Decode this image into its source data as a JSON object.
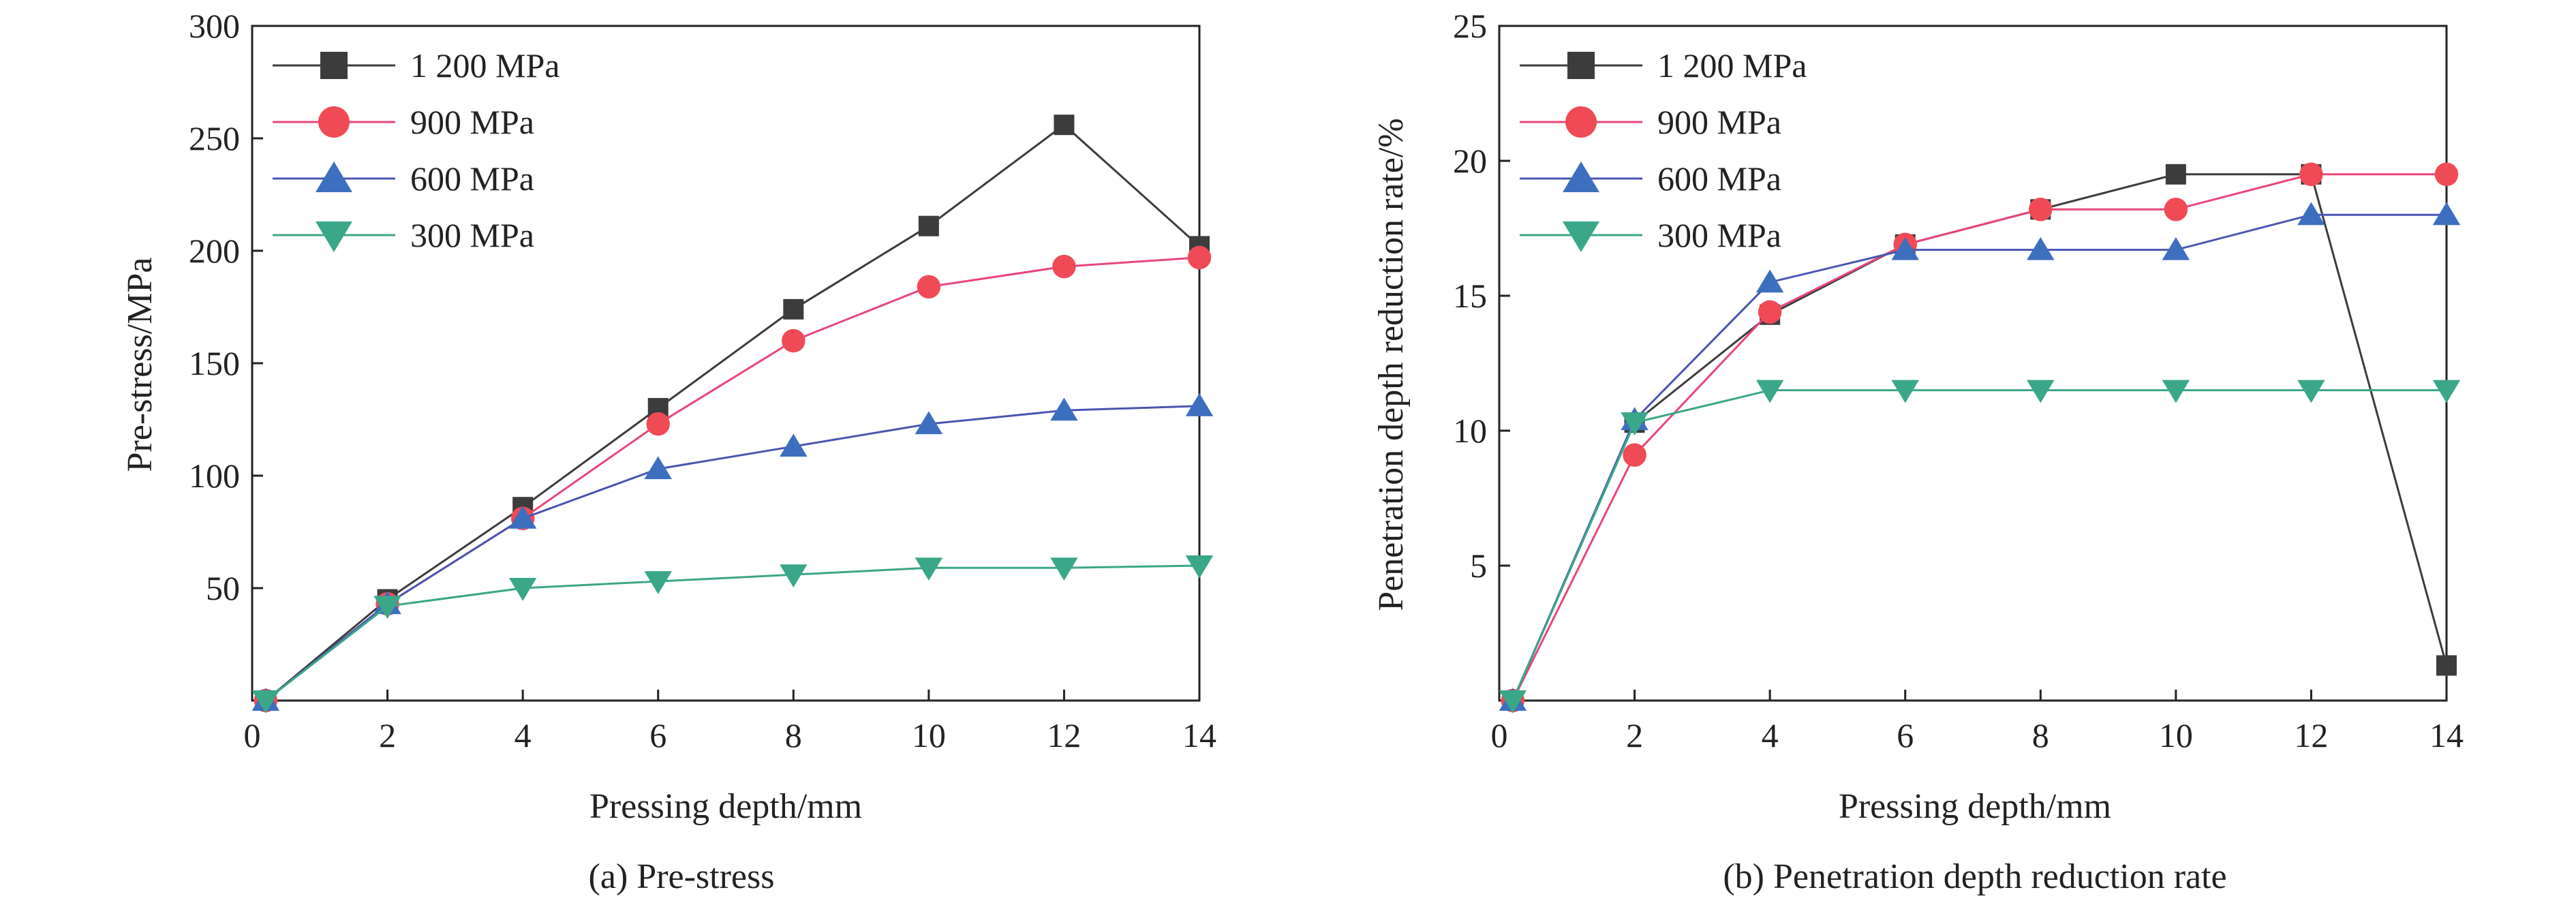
{
  "chart_data": [
    {
      "type": "line",
      "caption": "(a) Pre-stress",
      "xlabel": "Pressing depth/mm",
      "ylabel": "Pre-stress/MPa",
      "xlim": [
        0,
        14
      ],
      "ylim": [
        0,
        300
      ],
      "xticks": [
        0,
        2,
        4,
        6,
        8,
        10,
        12,
        14
      ],
      "yticks": [
        50,
        100,
        150,
        200,
        250,
        300
      ],
      "grid": false,
      "legend": "top-left",
      "series": [
        {
          "name": "1 200 MPa",
          "marker": "square",
          "color": "#3c3c3c",
          "line_color": "#3c3c3c",
          "x": [
            0.2,
            2,
            4,
            6,
            8,
            10,
            12,
            14
          ],
          "y": [
            0,
            45,
            86,
            130,
            174,
            211,
            256,
            202
          ]
        },
        {
          "name": "900 MPa",
          "marker": "circle",
          "color": "#f04a56",
          "line_color": "#e8467a",
          "x": [
            0.2,
            2,
            4,
            6,
            8,
            10,
            12,
            14
          ],
          "y": [
            0,
            43,
            81,
            123,
            160,
            184,
            193,
            197
          ]
        },
        {
          "name": "600 MPa",
          "marker": "triangle-up",
          "color": "#3d6fbf",
          "line_color": "#4a55b0",
          "x": [
            0.2,
            2,
            4,
            6,
            8,
            10,
            12,
            14
          ],
          "y": [
            0,
            43,
            81,
            103,
            113,
            123,
            129,
            131
          ]
        },
        {
          "name": "300 MPa",
          "marker": "triangle-down",
          "color": "#3aa788",
          "line_color": "#3aa788",
          "x": [
            0.2,
            2,
            4,
            6,
            8,
            10,
            12,
            14
          ],
          "y": [
            0,
            42,
            50,
            53,
            56,
            59,
            59,
            60
          ]
        }
      ]
    },
    {
      "type": "line",
      "caption": "(b) Penetration depth reduction rate",
      "xlabel": "Pressing depth/mm",
      "ylabel": "Penetration depth reduction rate/%",
      "xlim": [
        0,
        14
      ],
      "ylim": [
        0,
        25
      ],
      "xticks": [
        0,
        2,
        4,
        6,
        8,
        10,
        12,
        14
      ],
      "yticks": [
        5,
        10,
        15,
        20,
        25
      ],
      "grid": false,
      "legend": "top-left",
      "series": [
        {
          "name": "1 200 MPa",
          "marker": "square",
          "color": "#3c3c3c",
          "line_color": "#3c3c3c",
          "x": [
            0.2,
            2,
            4,
            6,
            8,
            10,
            12,
            14
          ],
          "y": [
            0,
            10.3,
            14.3,
            16.9,
            18.2,
            19.5,
            19.5,
            1.3
          ]
        },
        {
          "name": "900 MPa",
          "marker": "circle",
          "color": "#f04a56",
          "line_color": "#e8467a",
          "x": [
            0.2,
            2,
            4,
            6,
            8,
            10,
            12,
            14
          ],
          "y": [
            0,
            9.1,
            14.4,
            16.9,
            18.2,
            18.2,
            19.5,
            19.5
          ]
        },
        {
          "name": "600 MPa",
          "marker": "triangle-up",
          "color": "#3d6fbf",
          "line_color": "#4a55b0",
          "x": [
            0.2,
            2,
            4,
            6,
            8,
            10,
            12,
            14
          ],
          "y": [
            0,
            10.4,
            15.5,
            16.7,
            16.7,
            16.7,
            18.0,
            18.0
          ]
        },
        {
          "name": "300 MPa",
          "marker": "triangle-down",
          "color": "#3aa788",
          "line_color": "#3aa788",
          "x": [
            0.2,
            2,
            4,
            6,
            8,
            10,
            12,
            14
          ],
          "y": [
            0,
            10.3,
            11.5,
            11.5,
            11.5,
            11.5,
            11.5,
            11.5
          ]
        }
      ]
    }
  ]
}
